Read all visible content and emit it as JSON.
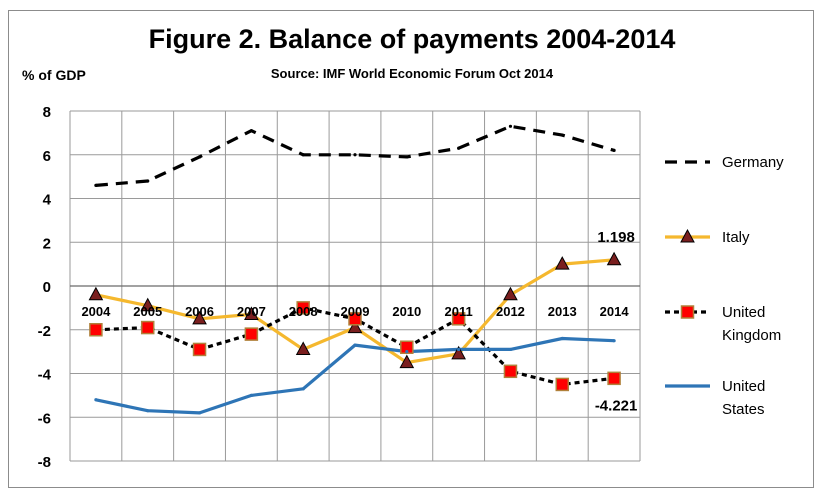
{
  "colors": {
    "germany": "#000000",
    "italy": "#F5B82E",
    "uk": "#000000",
    "us": "#2E75B6",
    "uk_marker": "#FF0000",
    "italy_marker": "#7A1F1F"
  },
  "chart_data": {
    "type": "line",
    "title": "Figure 2. Balance of payments 2004-2014",
    "subtitle": "Source: IMF World Economic Forum Oct 2014",
    "ylabel": "% of GDP",
    "xlabel": "",
    "ylim": [
      -8,
      8
    ],
    "yticks": [
      "8",
      "6",
      "4",
      "2",
      "0",
      "-2",
      "-4",
      "-6",
      "-8"
    ],
    "categories": [
      "2004",
      "2005",
      "2006",
      "2007",
      "2008",
      "2009",
      "2010",
      "2011",
      "2012",
      "2013",
      "2014"
    ],
    "grid": true,
    "legend_position": "right",
    "series": [
      {
        "name": "Germany",
        "values": [
          4.6,
          4.8,
          5.9,
          7.1,
          6.0,
          6.0,
          5.9,
          6.3,
          7.3,
          6.9,
          6.2
        ]
      },
      {
        "name": "Italy",
        "values": [
          -0.4,
          -0.9,
          -1.5,
          -1.3,
          -2.9,
          -1.9,
          -3.5,
          -3.1,
          -0.4,
          1.0,
          1.198
        ]
      },
      {
        "name": "United Kingdom",
        "values": [
          -2.0,
          -1.9,
          -2.9,
          -2.2,
          -1.0,
          -1.5,
          -2.8,
          -1.5,
          -3.9,
          -4.5,
          -4.221
        ]
      },
      {
        "name": "United States",
        "values": [
          -5.2,
          -5.7,
          -5.8,
          -5.0,
          -4.7,
          -2.7,
          -3.0,
          -2.9,
          -2.9,
          -2.4,
          -2.5
        ]
      }
    ],
    "annotations": [
      {
        "text": "1.198",
        "series": "Italy",
        "category": "2014"
      },
      {
        "text": "-4.221",
        "series": "United Kingdom",
        "category": "2014"
      }
    ]
  }
}
